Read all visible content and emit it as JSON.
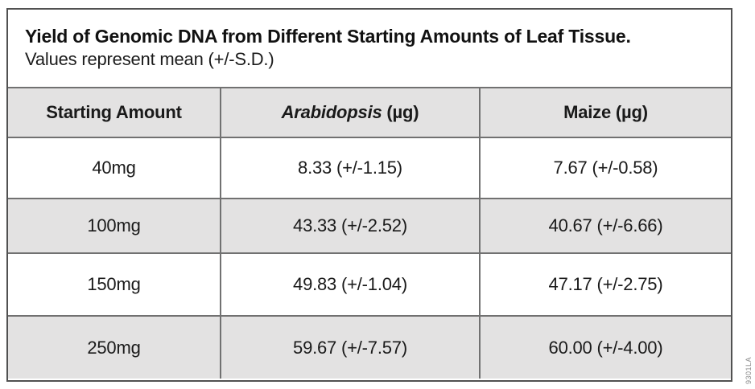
{
  "figure": {
    "title": "Yield of Genomic DNA from Different Starting Amounts of Leaf Tissue.",
    "subtitle": "Values represent mean (+/-S.D.)",
    "figure_id": "9301LA"
  },
  "table": {
    "header": {
      "col1": "Starting Amount",
      "col2_italic": "Arabidopsis",
      "col2_unit": " (µg)",
      "col3": "Maize (µg)"
    },
    "rows": [
      [
        "40mg",
        "8.33 (+/-1.15)",
        "7.67 (+/-0.58)"
      ],
      [
        "100mg",
        "43.33 (+/-2.52)",
        "40.67 (+/-6.66)"
      ],
      [
        "150mg",
        "49.83 (+/-1.04)",
        "47.17 (+/-2.75)"
      ],
      [
        "250mg",
        "59.67 (+/-7.57)",
        "60.00 (+/-4.00)"
      ]
    ]
  },
  "colors": {
    "row_shade": "#e3e2e2",
    "grid_line": "#717171",
    "outer_border": "#515151",
    "text": "#1a1a1a",
    "figure_id_text": "#8a8a8a"
  },
  "chart_data": {
    "type": "table",
    "title": "Yield of Genomic DNA from Different Starting Amounts of Leaf Tissue.",
    "subtitle": "Values represent mean (+/-S.D.)",
    "columns": [
      "Starting Amount",
      "Arabidopsis (µg)",
      "Maize (µg)"
    ],
    "categories": [
      "40mg",
      "100mg",
      "150mg",
      "250mg"
    ],
    "series": [
      {
        "name": "Arabidopsis (µg)",
        "means": [
          8.33,
          43.33,
          49.83,
          59.67
        ],
        "sd": [
          1.15,
          2.52,
          1.04,
          7.57
        ]
      },
      {
        "name": "Maize (µg)",
        "means": [
          7.67,
          40.67,
          47.17,
          60.0
        ],
        "sd": [
          0.58,
          6.66,
          2.75,
          4.0
        ]
      }
    ],
    "layout": {
      "shaded_rows": "header and alternating (2nd, 4th) data rows",
      "grid": true
    }
  }
}
